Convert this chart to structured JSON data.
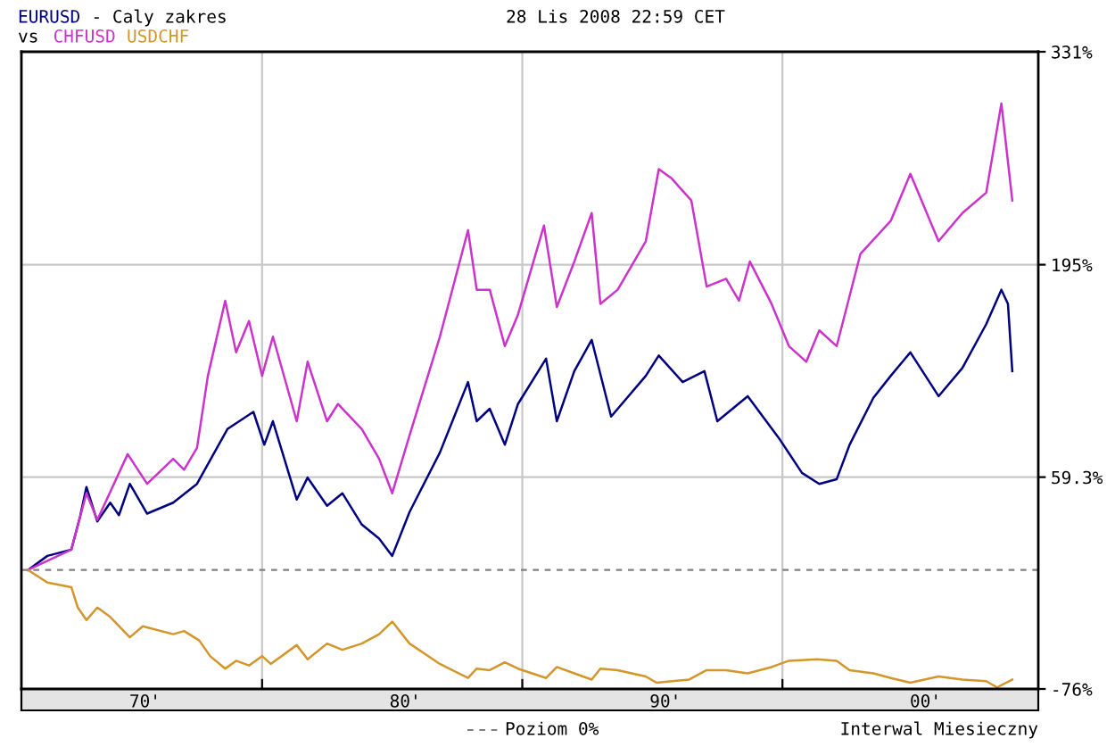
{
  "chart_data": {
    "type": "line",
    "title": "- Caly zakres",
    "subtitle": "28 Lis 2008 22:59 CET",
    "legend_title": "vs",
    "legend": "bottom",
    "grid": true,
    "annotations": [
      "Interwal Miesieczny"
    ],
    "ref_lines": [
      {
        "axis": "y",
        "value": 0,
        "label": "Poziom 0%",
        "color": "#808080",
        "line_style": "dashed"
      }
    ],
    "xlim": [
      "1970-10",
      "2009-11"
    ],
    "xticks": [
      {
        "value": "1975-07",
        "label": "70'"
      },
      {
        "value": "1980",
        "label": null
      },
      {
        "value": "1985-07",
        "label": "80'"
      },
      {
        "value": "1990",
        "label": null
      },
      {
        "value": "1995-07",
        "label": "90'"
      },
      {
        "value": "2000",
        "label": null
      },
      {
        "value": "2005-07",
        "label": "00'"
      }
    ],
    "ylim": [
      -76,
      331
    ],
    "yticks": [
      {
        "value": -76,
        "label": "-76%"
      },
      {
        "value": 59.3,
        "label": "59.3%"
      },
      {
        "value": 195,
        "label": "195%"
      },
      {
        "value": 331,
        "label": "331%"
      }
    ],
    "series": [
      {
        "name": "EURUSD",
        "color": "#000080",
        "x": [
          "1971-01",
          "1971-10",
          "1972-09",
          "1973-01",
          "1973-04",
          "1973-09",
          "1974-03",
          "1974-07",
          "1974-12",
          "1975-08",
          "1976-08",
          "1977-07",
          "1978-09",
          "1979-09",
          "1980-02",
          "1980-06",
          "1981-05",
          "1981-10",
          "1982-07",
          "1983-02",
          "1983-11",
          "1984-07",
          "1985-01",
          "1985-09",
          "1986-11",
          "1987-12",
          "1988-04",
          "1988-10",
          "1989-05",
          "1989-11",
          "1990-12",
          "1991-05",
          "1992-01",
          "1992-09",
          "1993-06",
          "1994-10",
          "1995-04",
          "1996-03",
          "1997-01",
          "1997-07",
          "1998-09",
          "1999-12",
          "2000-10",
          "2001-06",
          "2002-02",
          "2002-08",
          "2003-07",
          "2004-03",
          "2004-12",
          "2006-01",
          "2006-12",
          "2007-11",
          "2008-06",
          "2008-09",
          "2008-11"
        ],
        "values": [
          0,
          9,
          13,
          34,
          53,
          31,
          43,
          35,
          55,
          36,
          43,
          55,
          90,
          101,
          80,
          95,
          45,
          59,
          41,
          49,
          29,
          20,
          9,
          37,
          75,
          120,
          95,
          103,
          80,
          106,
          135,
          95,
          127,
          147,
          98,
          124,
          137,
          120,
          127,
          95,
          111,
          83,
          62,
          55,
          58,
          80,
          110,
          124,
          139,
          111,
          129,
          157,
          179,
          170,
          127
        ]
      },
      {
        "name": "CHFUSD",
        "color": "#cc33cc",
        "x": [
          "1971-01",
          "1972-09",
          "1973-04",
          "1973-09",
          "1974-11",
          "1975-08",
          "1976-08",
          "1977-01",
          "1977-07",
          "1977-12",
          "1978-08",
          "1979-01",
          "1979-07",
          "1980-01",
          "1980-06",
          "1981-05",
          "1981-10",
          "1982-07",
          "1982-12",
          "1983-11",
          "1984-07",
          "1985-01",
          "1985-09",
          "1986-11",
          "1987-12",
          "1988-04",
          "1988-10",
          "1989-05",
          "1989-11",
          "1990-11",
          "1991-05",
          "1992-01",
          "1992-09",
          "1993-01",
          "1993-09",
          "1994-10",
          "1995-04",
          "1995-10",
          "1996-07",
          "1997-02",
          "1997-11",
          "1998-05",
          "1998-10",
          "1999-08",
          "2000-04",
          "2000-12",
          "2001-06",
          "2002-02",
          "2003-01",
          "2004-03",
          "2004-12",
          "2006-01",
          "2006-12",
          "2007-11",
          "2008-06",
          "2008-11"
        ],
        "values": [
          0,
          13,
          49,
          32,
          74,
          55,
          71,
          64,
          78,
          124,
          172,
          139,
          159,
          124,
          149,
          95,
          133,
          95,
          106,
          90,
          71,
          49,
          86,
          149,
          217,
          179,
          179,
          143,
          163,
          220,
          168,
          197,
          228,
          170,
          179,
          210,
          256,
          250,
          236,
          181,
          186,
          172,
          197,
          170,
          143,
          133,
          153,
          143,
          202,
          223,
          253,
          210,
          228,
          241,
          298,
          236
        ]
      },
      {
        "name": "USDCHF",
        "color": "#d4962a",
        "x": [
          "1971-01",
          "1971-10",
          "1972-09",
          "1972-12",
          "1973-04",
          "1973-09",
          "1974-03",
          "1974-12",
          "1975-06",
          "1976-08",
          "1977-01",
          "1977-08",
          "1978-01",
          "1978-08",
          "1979-01",
          "1979-07",
          "1980-01",
          "1980-05",
          "1981-05",
          "1981-10",
          "1982-07",
          "1983-02",
          "1983-11",
          "1984-07",
          "1985-01",
          "1985-09",
          "1986-11",
          "1987-12",
          "1988-04",
          "1988-10",
          "1989-05",
          "1989-11",
          "1990-12",
          "1991-05",
          "1992-01",
          "1992-09",
          "1993-01",
          "1993-09",
          "1994-10",
          "1995-03",
          "1996-06",
          "1997-02",
          "1997-11",
          "1998-09",
          "1999-08",
          "2000-04",
          "2001-05",
          "2002-02",
          "2002-08",
          "2003-07",
          "2004-03",
          "2004-12",
          "2006-01",
          "2006-12",
          "2007-11",
          "2008-04",
          "2008-11"
        ],
        "values": [
          0,
          -8,
          -11,
          -24,
          -32,
          -24,
          -30,
          -43,
          -36,
          -41,
          -39,
          -45,
          -55,
          -63,
          -58,
          -61,
          -55,
          -60,
          -48,
          -57,
          -47,
          -51,
          -47,
          -41,
          -33,
          -47,
          -60,
          -69,
          -63,
          -64,
          -59,
          -63,
          -69,
          -62,
          -66,
          -70,
          -63,
          -64,
          -68,
          -72,
          -70,
          -64,
          -64,
          -66,
          -62,
          -58,
          -57,
          -58,
          -64,
          -66,
          -69,
          -72,
          -68,
          -70,
          -71,
          -75,
          -70
        ]
      }
    ]
  }
}
